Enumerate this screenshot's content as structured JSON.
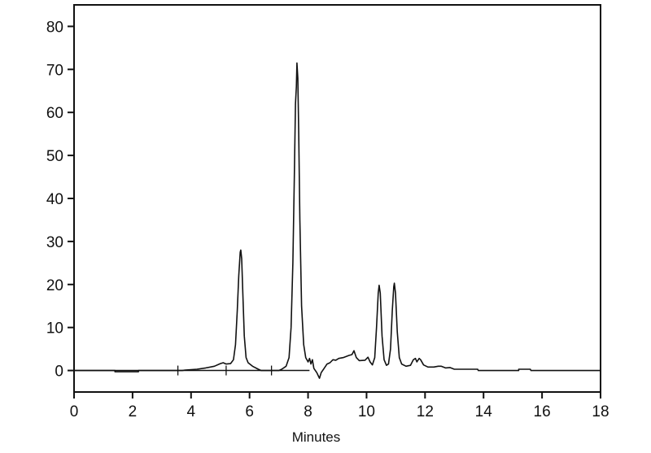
{
  "chart_data": {
    "type": "line",
    "title": "",
    "xlabel": "Minutes",
    "ylabel": "",
    "xlim": [
      0,
      18
    ],
    "ylim": [
      -5,
      85
    ],
    "xticks": [
      0,
      2,
      4,
      6,
      8,
      10,
      12,
      14,
      16,
      18
    ],
    "yticks": [
      0,
      10,
      20,
      30,
      40,
      50,
      60,
      70,
      80
    ],
    "grid": false,
    "line_color": "#111111",
    "series": [
      {
        "points": [
          [
            0,
            0
          ],
          [
            1.4,
            0
          ],
          [
            1.4,
            -0.3
          ],
          [
            2.2,
            -0.3
          ],
          [
            2.2,
            0
          ],
          [
            3.7,
            0
          ],
          [
            3.8,
            0.1
          ],
          [
            4.2,
            0.3
          ],
          [
            4.5,
            0.6
          ],
          [
            4.8,
            1.0
          ],
          [
            5.0,
            1.6
          ],
          [
            5.1,
            1.8
          ],
          [
            5.2,
            1.5
          ],
          [
            5.35,
            1.6
          ],
          [
            5.45,
            2.5
          ],
          [
            5.52,
            6
          ],
          [
            5.58,
            14
          ],
          [
            5.63,
            22
          ],
          [
            5.68,
            27.5
          ],
          [
            5.7,
            28
          ],
          [
            5.73,
            26
          ],
          [
            5.77,
            18
          ],
          [
            5.82,
            8
          ],
          [
            5.88,
            3
          ],
          [
            5.95,
            1.8
          ],
          [
            6.1,
            1.0
          ],
          [
            6.3,
            0.3
          ],
          [
            6.4,
            0
          ],
          [
            7.0,
            0
          ],
          [
            7.1,
            0.3
          ],
          [
            7.25,
            1
          ],
          [
            7.35,
            3
          ],
          [
            7.42,
            10
          ],
          [
            7.48,
            25
          ],
          [
            7.53,
            45
          ],
          [
            7.57,
            62
          ],
          [
            7.6,
            66
          ],
          [
            7.62,
            71.5
          ],
          [
            7.65,
            68
          ],
          [
            7.68,
            55
          ],
          [
            7.72,
            35
          ],
          [
            7.78,
            15
          ],
          [
            7.85,
            6
          ],
          [
            7.92,
            3
          ],
          [
            8.0,
            2
          ],
          [
            8.05,
            2.8
          ],
          [
            8.1,
            1.5
          ],
          [
            8.15,
            2.5
          ],
          [
            8.2,
            0.5
          ],
          [
            8.3,
            -0.5
          ],
          [
            8.39,
            -1.8
          ],
          [
            8.45,
            -0.5
          ],
          [
            8.55,
            0.5
          ],
          [
            8.65,
            1.5
          ],
          [
            8.75,
            1.8
          ],
          [
            8.85,
            2.5
          ],
          [
            8.95,
            2.4
          ],
          [
            9.05,
            2.8
          ],
          [
            9.2,
            3
          ],
          [
            9.4,
            3.5
          ],
          [
            9.5,
            3.7
          ],
          [
            9.57,
            4.6
          ],
          [
            9.65,
            3
          ],
          [
            9.75,
            2.3
          ],
          [
            9.95,
            2.4
          ],
          [
            10.05,
            3.1
          ],
          [
            10.12,
            2.0
          ],
          [
            10.2,
            1.3
          ],
          [
            10.28,
            3
          ],
          [
            10.34,
            10
          ],
          [
            10.4,
            18
          ],
          [
            10.43,
            19.8
          ],
          [
            10.47,
            18
          ],
          [
            10.53,
            8
          ],
          [
            10.6,
            2.5
          ],
          [
            10.68,
            1.2
          ],
          [
            10.75,
            1.5
          ],
          [
            10.82,
            5
          ],
          [
            10.88,
            14
          ],
          [
            10.93,
            19.5
          ],
          [
            10.95,
            20.3
          ],
          [
            10.99,
            18
          ],
          [
            11.05,
            9
          ],
          [
            11.12,
            3
          ],
          [
            11.2,
            1.5
          ],
          [
            11.35,
            1.0
          ],
          [
            11.5,
            1.2
          ],
          [
            11.6,
            2.5
          ],
          [
            11.67,
            2.8
          ],
          [
            11.72,
            2
          ],
          [
            11.8,
            2.8
          ],
          [
            11.85,
            2.5
          ],
          [
            11.95,
            1.3
          ],
          [
            12.1,
            0.8
          ],
          [
            12.3,
            0.8
          ],
          [
            12.45,
            1
          ],
          [
            12.55,
            1
          ],
          [
            12.7,
            0.6
          ],
          [
            12.85,
            0.7
          ],
          [
            13.0,
            0.3
          ],
          [
            13.8,
            0.3
          ],
          [
            13.82,
            0
          ],
          [
            15.2,
            0
          ],
          [
            15.2,
            0.3
          ],
          [
            15.6,
            0.3
          ],
          [
            15.62,
            0
          ],
          [
            18,
            0
          ]
        ]
      }
    ],
    "integration_baseline": {
      "x_range": [
        0,
        8.05
      ],
      "value": 0,
      "markers": [
        3.55,
        5.2,
        6.75
      ]
    }
  }
}
